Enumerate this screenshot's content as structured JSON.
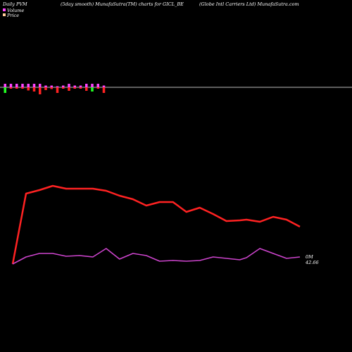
{
  "header": {
    "left": "Daily PVM",
    "center": "(5day smooth) MunafaSutra(TM) charts for GICL_BE",
    "right": "(Globe   Intl Carriers Ltd) MunafaSutra.com"
  },
  "legend": {
    "volume_label": "Volume",
    "price_label": "Price",
    "volume_color": "#ff44ff",
    "price_color": "#ffcc99"
  },
  "chart_data": {
    "type": "line",
    "x": [
      1,
      2,
      3,
      4,
      5,
      6,
      7,
      8,
      9,
      10,
      11,
      12,
      13,
      14,
      15,
      16,
      17,
      18,
      18.5,
      19.5,
      20.5,
      21.5,
      22.5
    ],
    "volume_bars": [
      {
        "value": 1,
        "color": "#ff44ff",
        "neg": -1.6,
        "neg_color": "#22ff22"
      },
      {
        "value": 1,
        "color": "#ff44ff",
        "neg": -0.4,
        "neg_color": "#ff2222"
      },
      {
        "value": 1,
        "color": "#ff44ff",
        "neg": -0.4,
        "neg_color": "#ff2222"
      },
      {
        "value": 1,
        "color": "#ff44ff",
        "neg": -0.4,
        "neg_color": "#ff2222"
      },
      {
        "value": 1,
        "color": "#ff44ff",
        "neg": -0.9,
        "neg_color": "#ff2222"
      },
      {
        "value": 1,
        "color": "#ff44ff",
        "neg": -1.2,
        "neg_color": "#ff2222"
      },
      {
        "value": 1,
        "color": "#ff44ff",
        "neg": -2.0,
        "neg_color": "#ff2222"
      },
      {
        "value": 0.5,
        "color": "#ff44ff",
        "neg": -0.8,
        "neg_color": "#ff2222"
      },
      {
        "value": 0.5,
        "color": "#ff44ff",
        "neg": -0.5,
        "neg_color": "#ff2222"
      },
      {
        "value": 0.3,
        "color": "#ff44ff",
        "neg": -1.6,
        "neg_color": "#ff2222"
      },
      {
        "value": 0.5,
        "color": "#ff44ff",
        "neg": -0.4,
        "neg_color": "#ff2222"
      },
      {
        "value": 1,
        "color": "#ff44ff",
        "neg": -1.0,
        "neg_color": "#ff2222"
      },
      {
        "value": 0.5,
        "color": "#ff44ff",
        "neg": -0.4,
        "neg_color": "#ff2222"
      },
      {
        "value": 0.5,
        "color": "#ff44ff",
        "neg": -0.4,
        "neg_color": "#ff2222"
      },
      {
        "value": 1,
        "color": "#ff44ff",
        "neg": -1.0,
        "neg_color": "#ff2222"
      },
      {
        "value": 1,
        "color": "#ff44ff",
        "neg": -1.2,
        "neg_color": "#22ff22"
      },
      {
        "value": 1,
        "color": "#ff44ff",
        "neg": -0.4,
        "neg_color": "#ff2222"
      },
      {
        "value": 0.5,
        "color": "#ff44ff",
        "neg": -1.6,
        "neg_color": "#ff2222"
      }
    ],
    "series": [
      {
        "color": "#ff2222",
        "values": [
          21,
          121,
          126,
          132,
          128,
          128,
          128,
          125,
          118,
          113,
          104,
          109,
          109,
          95,
          101,
          92,
          82,
          83,
          84,
          81,
          88,
          84,
          74
        ]
      },
      {
        "color": "#cc44cc",
        "values": [
          21,
          31,
          36,
          36,
          32,
          33,
          31,
          43,
          28,
          36,
          33,
          25,
          26,
          25,
          26,
          31,
          29,
          27,
          30,
          43,
          36,
          29,
          31
        ]
      }
    ],
    "ylim": [
      0,
      180
    ],
    "end_labels": {
      "volume": "0M",
      "price": "42.66"
    }
  }
}
